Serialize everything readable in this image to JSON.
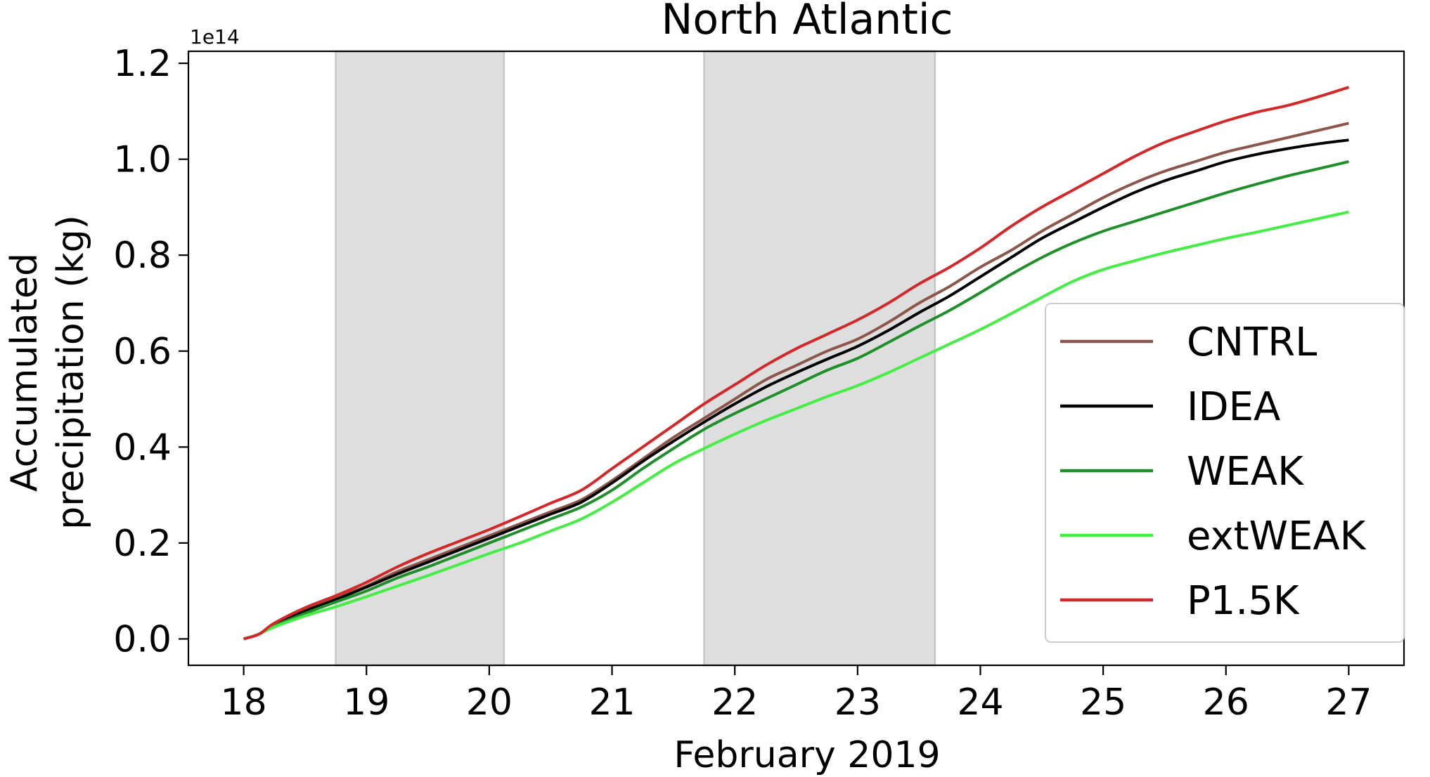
{
  "chart_data": {
    "type": "line",
    "title": "North Atlantic",
    "xlabel": "February 2019",
    "ylabel_lines": [
      "Accumulated",
      "precipitation (kg)"
    ],
    "y_offset_label": "1e14",
    "xlim": [
      17.55,
      27.45
    ],
    "ylim": [
      -0.055,
      1.225
    ],
    "x_ticks": [
      18,
      19,
      20,
      21,
      22,
      23,
      24,
      25,
      26,
      27
    ],
    "x_tick_labels": [
      "18",
      "19",
      "20",
      "21",
      "22",
      "23",
      "24",
      "25",
      "26",
      "27"
    ],
    "y_ticks": [
      0.0,
      0.2,
      0.4,
      0.6,
      0.8,
      1.0,
      1.2
    ],
    "y_tick_labels": [
      "0.0",
      "0.2",
      "0.4",
      "0.6",
      "0.8",
      "1.0",
      "1.2"
    ],
    "shaded_spans": [
      {
        "x0": 18.75,
        "x1": 20.12
      },
      {
        "x0": 21.75,
        "x1": 23.63
      }
    ],
    "shade_color": "#dedede",
    "shade_edge_color": "#c6c6c6",
    "legend_position": "lower-right",
    "x": [
      18.0,
      18.125,
      18.25,
      18.5,
      18.75,
      19.0,
      19.25,
      19.5,
      19.75,
      20.0,
      20.25,
      20.5,
      20.75,
      21.0,
      21.25,
      21.5,
      21.75,
      22.0,
      22.25,
      22.5,
      22.75,
      23.0,
      23.25,
      23.5,
      23.75,
      24.0,
      24.25,
      24.5,
      24.75,
      25.0,
      25.25,
      25.5,
      25.75,
      26.0,
      26.25,
      26.5,
      26.75,
      27.0
    ],
    "series": [
      {
        "name": "CNTRL",
        "color": "#8c564b",
        "values": [
          0.0,
          0.01,
          0.03,
          0.06,
          0.085,
          0.11,
          0.14,
          0.165,
          0.19,
          0.215,
          0.24,
          0.265,
          0.29,
          0.33,
          0.375,
          0.42,
          0.46,
          0.5,
          0.54,
          0.57,
          0.6,
          0.625,
          0.66,
          0.7,
          0.735,
          0.775,
          0.81,
          0.85,
          0.885,
          0.92,
          0.95,
          0.975,
          0.995,
          1.015,
          1.03,
          1.045,
          1.06,
          1.075
        ]
      },
      {
        "name": "IDEA",
        "color": "#000000",
        "values": [
          0.0,
          0.01,
          0.03,
          0.058,
          0.082,
          0.108,
          0.135,
          0.16,
          0.185,
          0.21,
          0.235,
          0.26,
          0.285,
          0.325,
          0.37,
          0.412,
          0.452,
          0.49,
          0.525,
          0.555,
          0.583,
          0.61,
          0.643,
          0.68,
          0.715,
          0.755,
          0.795,
          0.835,
          0.868,
          0.9,
          0.93,
          0.955,
          0.975,
          0.995,
          1.01,
          1.022,
          1.032,
          1.04
        ]
      },
      {
        "name": "WEAK",
        "color": "#1f8f2a",
        "values": [
          0.0,
          0.01,
          0.027,
          0.053,
          0.077,
          0.1,
          0.127,
          0.15,
          0.175,
          0.2,
          0.225,
          0.25,
          0.275,
          0.31,
          0.355,
          0.397,
          0.437,
          0.47,
          0.5,
          0.53,
          0.56,
          0.585,
          0.618,
          0.652,
          0.685,
          0.722,
          0.76,
          0.795,
          0.825,
          0.85,
          0.87,
          0.89,
          0.91,
          0.93,
          0.948,
          0.965,
          0.98,
          0.995
        ]
      },
      {
        "name": "extWEAK",
        "color": "#44ee44",
        "values": [
          0.0,
          0.01,
          0.025,
          0.048,
          0.067,
          0.088,
          0.11,
          0.132,
          0.155,
          0.178,
          0.2,
          0.225,
          0.25,
          0.285,
          0.325,
          0.365,
          0.397,
          0.427,
          0.455,
          0.48,
          0.505,
          0.528,
          0.555,
          0.585,
          0.615,
          0.645,
          0.678,
          0.712,
          0.745,
          0.77,
          0.788,
          0.805,
          0.82,
          0.835,
          0.848,
          0.862,
          0.876,
          0.89
        ]
      },
      {
        "name": "P1.5K",
        "color": "#d62728",
        "values": [
          0.0,
          0.01,
          0.033,
          0.065,
          0.09,
          0.118,
          0.15,
          0.178,
          0.203,
          0.228,
          0.255,
          0.283,
          0.31,
          0.355,
          0.4,
          0.445,
          0.49,
          0.53,
          0.57,
          0.605,
          0.635,
          0.665,
          0.7,
          0.74,
          0.775,
          0.815,
          0.86,
          0.9,
          0.935,
          0.97,
          1.005,
          1.035,
          1.058,
          1.08,
          1.098,
          1.112,
          1.13,
          1.15
        ]
      }
    ]
  }
}
